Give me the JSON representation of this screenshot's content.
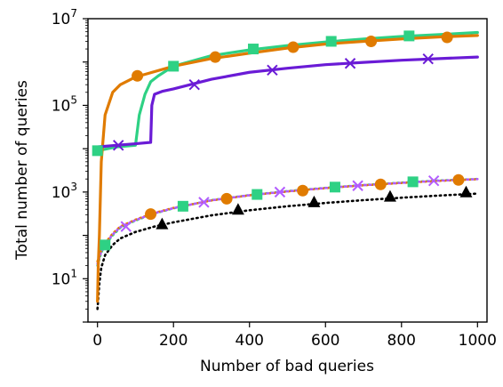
{
  "chart_data": {
    "type": "line",
    "title": "",
    "xlabel": "Number of bad queries",
    "ylabel": "Total number of queries",
    "xlim": [
      -25,
      1025
    ],
    "ylim_log10": [
      0,
      7
    ],
    "y_scale": "log",
    "x_ticks": [
      0,
      200,
      400,
      600,
      800,
      1000
    ],
    "y_ticks": [
      {
        "base": "10",
        "exp": "1",
        "value": 10
      },
      {
        "base": "10",
        "exp": "3",
        "value": 1000
      },
      {
        "base": "10",
        "exp": "5",
        "value": 100000
      },
      {
        "base": "10",
        "exp": "7",
        "value": 10000000
      }
    ],
    "grid": false,
    "legend": "none",
    "series": [
      {
        "color": "#2ed184",
        "line_style": "solid",
        "marker": "square",
        "x": [
          0,
          50,
          100,
          110,
          125,
          140,
          160,
          180,
          200,
          300,
          400,
          500,
          600,
          700,
          800,
          900,
          1000
        ],
        "y": [
          9000,
          11000,
          12000,
          60000,
          180000,
          350000,
          480000,
          620000,
          800000,
          1400000,
          1900000,
          2400000,
          2900000,
          3400000,
          3900000,
          4300000,
          4800000
        ],
        "marker_x": [
          0,
          200,
          410,
          615,
          820
        ],
        "marker_y": [
          9000,
          800000,
          2000000,
          3000000,
          4000000
        ]
      },
      {
        "color": "#e07b00",
        "line_style": "solid",
        "marker": "circle",
        "x": [
          0,
          2,
          5,
          10,
          20,
          40,
          60,
          100,
          200,
          300,
          400,
          500,
          600,
          700,
          800,
          900,
          1000
        ],
        "y": [
          3,
          20,
          100,
          5000,
          60000,
          200000,
          300000,
          450000,
          800000,
          1200000,
          1600000,
          2100000,
          2600000,
          3000000,
          3400000,
          3800000,
          4100000
        ],
        "marker_x": [
          105,
          310,
          515,
          720,
          920
        ],
        "marker_y": [
          480000,
          1300000,
          2200000,
          3000000,
          3700000
        ]
      },
      {
        "color": "#6a1bd6",
        "line_style": "solid",
        "marker": "x",
        "x": [
          0,
          50,
          100,
          140,
          143,
          150,
          170,
          200,
          300,
          400,
          500,
          600,
          700,
          800,
          900,
          1000
        ],
        "y": [
          11000,
          12000,
          13000,
          14000,
          100000,
          180000,
          210000,
          240000,
          400000,
          580000,
          720000,
          870000,
          980000,
          1100000,
          1200000,
          1300000
        ],
        "marker_x": [
          55,
          255,
          460,
          665,
          870
        ],
        "marker_y": [
          12000,
          300000,
          650000,
          930000,
          1180000
        ]
      },
      {
        "color": "#000000",
        "line_style": "dotted",
        "marker": "triangle",
        "x": [
          0,
          5,
          10,
          20,
          40,
          60,
          100,
          150,
          200,
          300,
          400,
          500,
          600,
          700,
          800,
          900,
          1000
        ],
        "y": [
          2,
          8,
          18,
          35,
          60,
          85,
          120,
          160,
          200,
          290,
          380,
          470,
          560,
          650,
          740,
          830,
          920
        ],
        "marker_x": [
          170,
          370,
          570,
          770,
          970
        ],
        "marker_y": [
          180,
          390,
          580,
          780,
          980
        ]
      },
      {
        "color": "#2ed184",
        "line_style": "dotted",
        "marker": "square",
        "x": [
          0,
          10,
          20,
          40,
          60,
          100,
          150,
          200,
          300,
          400,
          500,
          600,
          700,
          800,
          900,
          1000
        ],
        "y": [
          20,
          40,
          60,
          100,
          150,
          220,
          320,
          420,
          650,
          850,
          1050,
          1250,
          1450,
          1650,
          1850,
          2000
        ],
        "marker_x": [
          20,
          225,
          420,
          625,
          830
        ],
        "marker_y": [
          60,
          470,
          880,
          1300,
          1720
        ]
      },
      {
        "color": "#e07b00",
        "line_style": "dotted",
        "marker": "circle",
        "x": [
          0,
          10,
          20,
          40,
          60,
          100,
          150,
          200,
          300,
          400,
          500,
          600,
          700,
          800,
          900,
          1000
        ],
        "y": [
          25,
          45,
          65,
          110,
          160,
          230,
          330,
          430,
          640,
          840,
          1030,
          1230,
          1430,
          1620,
          1810,
          1980
        ],
        "marker_x": [
          140,
          340,
          540,
          745,
          950
        ],
        "marker_y": [
          310,
          700,
          1080,
          1500,
          1900
        ]
      },
      {
        "color": "#b35cff",
        "line_style": "dotted",
        "marker": "x",
        "x": [
          0,
          10,
          20,
          40,
          60,
          100,
          150,
          200,
          300,
          400,
          500,
          600,
          700,
          800,
          900,
          1000
        ],
        "y": [
          22,
          42,
          62,
          105,
          155,
          225,
          325,
          425,
          645,
          845,
          1040,
          1240,
          1440,
          1630,
          1830,
          1990
        ],
        "marker_x": [
          75,
          280,
          480,
          685,
          885
        ],
        "marker_y": [
          160,
          580,
          1000,
          1400,
          1820
        ]
      }
    ]
  }
}
